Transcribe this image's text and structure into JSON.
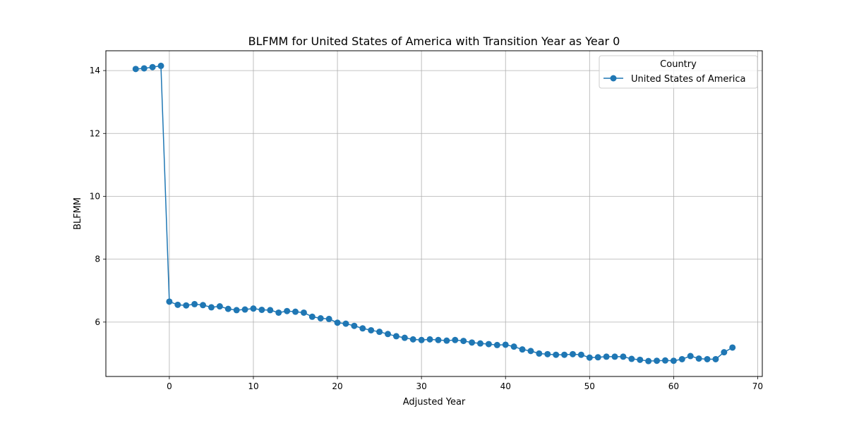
{
  "chart_data": {
    "type": "line",
    "title": "BLFMM for United States of America with Transition Year as Year 0",
    "xlabel": "Adjusted Year",
    "ylabel": "BLFMM",
    "xlim": [
      -7.55,
      70.55
    ],
    "ylim": [
      4.27,
      14.63
    ],
    "xticks": [
      0,
      10,
      20,
      30,
      40,
      50,
      60,
      70
    ],
    "yticks": [
      6,
      8,
      10,
      12,
      14
    ],
    "grid": true,
    "legend": {
      "title": "Country",
      "placement": "top-right"
    },
    "series": [
      {
        "name": "United States of America",
        "color": "#1f77b4",
        "marker": "circle",
        "x": [
          -4,
          -3,
          -2,
          -1,
          0,
          1,
          2,
          3,
          4,
          5,
          6,
          7,
          8,
          9,
          10,
          11,
          12,
          13,
          14,
          15,
          16,
          17,
          18,
          19,
          20,
          21,
          22,
          23,
          24,
          25,
          26,
          27,
          28,
          29,
          30,
          31,
          32,
          33,
          34,
          35,
          36,
          37,
          38,
          39,
          40,
          41,
          42,
          43,
          44,
          45,
          46,
          47,
          48,
          49,
          50,
          51,
          52,
          53,
          54,
          55,
          56,
          57,
          58,
          59,
          60,
          61,
          62,
          63,
          64,
          65,
          66,
          67
        ],
        "y": [
          14.05,
          14.07,
          14.11,
          14.15,
          6.65,
          6.55,
          6.53,
          6.57,
          6.54,
          6.47,
          6.5,
          6.42,
          6.38,
          6.4,
          6.43,
          6.39,
          6.38,
          6.3,
          6.35,
          6.33,
          6.3,
          6.17,
          6.12,
          6.1,
          5.98,
          5.95,
          5.88,
          5.8,
          5.74,
          5.69,
          5.62,
          5.55,
          5.5,
          5.45,
          5.43,
          5.45,
          5.43,
          5.41,
          5.43,
          5.4,
          5.35,
          5.32,
          5.3,
          5.27,
          5.28,
          5.22,
          5.13,
          5.08,
          5.0,
          4.98,
          4.96,
          4.96,
          4.98,
          4.96,
          4.87,
          4.88,
          4.9,
          4.9,
          4.9,
          4.83,
          4.8,
          4.76,
          4.77,
          4.78,
          4.77,
          4.82,
          4.92,
          4.84,
          4.82,
          4.82,
          5.04,
          5.19
        ]
      }
    ]
  }
}
